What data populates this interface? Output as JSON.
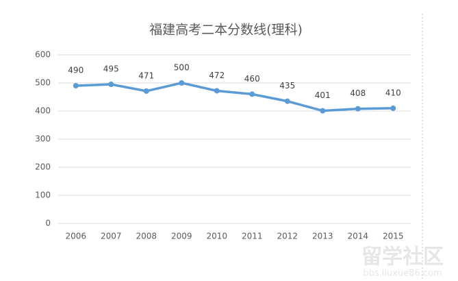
{
  "chart_data": {
    "type": "line",
    "title": "福建高考二本分数线(理科)",
    "categories": [
      "2006",
      "2007",
      "2008",
      "2009",
      "2010",
      "2011",
      "2012",
      "2013",
      "2014",
      "2015"
    ],
    "series": [
      {
        "color": "#5b9bd5",
        "values": [
          490,
          495,
          471,
          500,
          472,
          460,
          435,
          401,
          408,
          410
        ]
      }
    ],
    "ylim": [
      0,
      600
    ],
    "yticks": [
      0,
      100,
      200,
      300,
      400,
      500,
      600
    ],
    "grid": true
  },
  "watermark": {
    "logo": "留学社区",
    "url": "bbs.liuxue86.com"
  }
}
